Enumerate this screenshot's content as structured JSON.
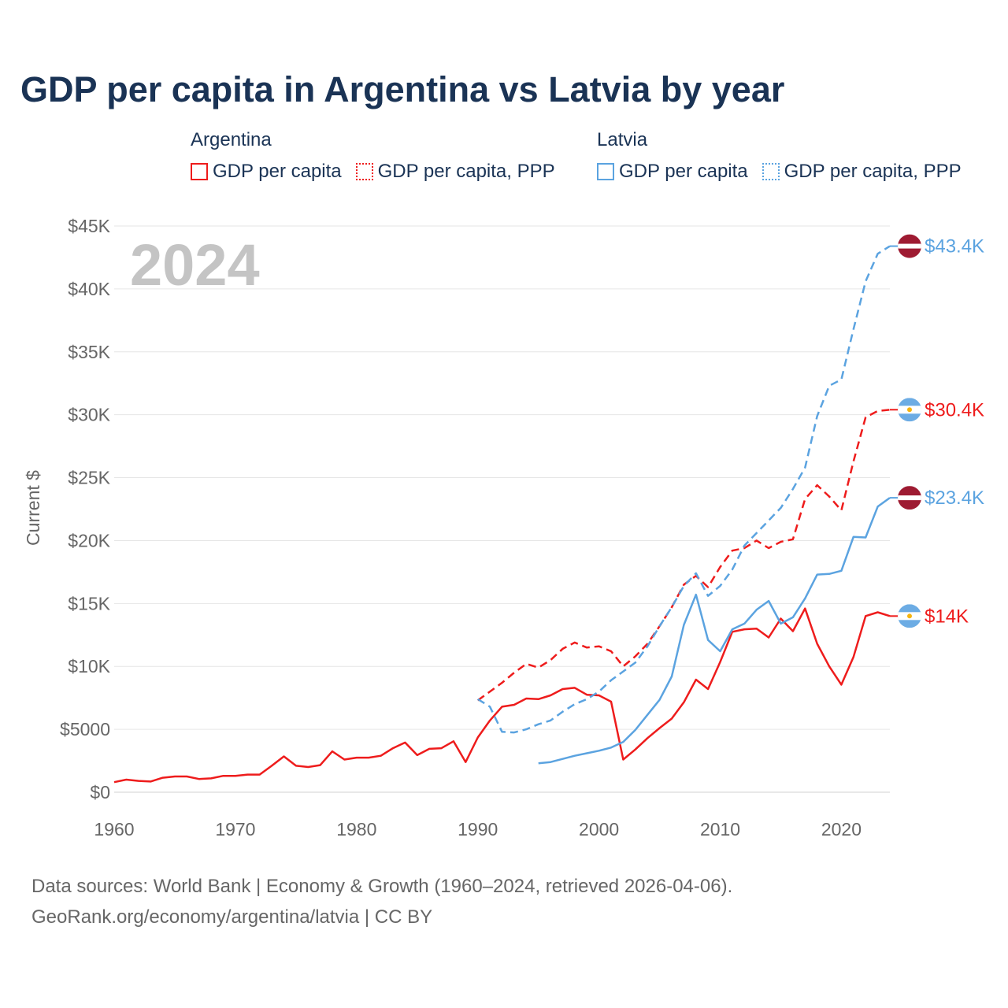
{
  "title": "GDP per capita in Argentina vs Latvia by year",
  "legend": {
    "groups": [
      {
        "name": "Argentina",
        "items": [
          {
            "label": "GDP per capita",
            "style": "solid",
            "color": "#ee1c1c"
          },
          {
            "label": "GDP per capita, PPP",
            "style": "dotted",
            "color": "#ee1c1c"
          }
        ]
      },
      {
        "name": "Latvia",
        "items": [
          {
            "label": "GDP per capita",
            "style": "solid",
            "color": "#5ba3e0"
          },
          {
            "label": "GDP per capita, PPP",
            "style": "dotted",
            "color": "#5ba3e0"
          }
        ]
      }
    ]
  },
  "footer": {
    "line1": "Data sources: World Bank | Economy & Growth (1960–2024, retrieved 2026-04-06).",
    "line2": "GeoRank.org/economy/argentina/latvia | CC BY"
  },
  "chart_data": {
    "type": "line",
    "title": "GDP per capita in Argentina vs Latvia by year",
    "year_label": "2024",
    "ylabel": "Current $",
    "xlabel": "",
    "xlim": [
      1960,
      2024
    ],
    "ylim": [
      0,
      45000
    ],
    "x_ticks": [
      1960,
      1970,
      1980,
      1990,
      2000,
      2010,
      2020
    ],
    "x_tick_labels": [
      "1960",
      "1970",
      "1980",
      "1990",
      "2000",
      "2010",
      "2020"
    ],
    "y_ticks": [
      0,
      5000,
      10000,
      15000,
      20000,
      25000,
      30000,
      35000,
      40000,
      45000
    ],
    "y_tick_labels": [
      "$0",
      "$5000",
      "$10K",
      "$15K",
      "$20K",
      "$25K",
      "$30K",
      "$35K",
      "$40K",
      "$45K"
    ],
    "grid": true,
    "series": [
      {
        "name": "Argentina GDP per capita",
        "country": "Argentina",
        "flag": "argentina",
        "dash": "solid",
        "color": "#ee1c1c",
        "end_label": "$14K",
        "x": [
          1960,
          1961,
          1962,
          1963,
          1964,
          1965,
          1966,
          1967,
          1968,
          1969,
          1970,
          1971,
          1972,
          1973,
          1974,
          1975,
          1976,
          1977,
          1978,
          1979,
          1980,
          1981,
          1982,
          1983,
          1984,
          1985,
          1986,
          1987,
          1988,
          1989,
          1990,
          1991,
          1992,
          1993,
          1994,
          1995,
          1996,
          1997,
          1998,
          1999,
          2000,
          2001,
          2002,
          2003,
          2004,
          2005,
          2006,
          2007,
          2008,
          2009,
          2010,
          2011,
          2012,
          2013,
          2014,
          2015,
          2016,
          2017,
          2018,
          2019,
          2020,
          2021,
          2022,
          2023,
          2024
        ],
        "values": [
          800,
          1000,
          900,
          850,
          1150,
          1250,
          1250,
          1050,
          1100,
          1300,
          1300,
          1400,
          1400,
          2100,
          2850,
          2100,
          2000,
          2150,
          3250,
          2600,
          2750,
          2750,
          2900,
          3500,
          3950,
          2950,
          3450,
          3500,
          4050,
          2400,
          4350,
          5700,
          6800,
          6950,
          7450,
          7400,
          7700,
          8200,
          8300,
          7750,
          7700,
          7200,
          2600,
          3400,
          4300,
          5100,
          5850,
          7150,
          8950,
          8200,
          10350,
          12750,
          12950,
          13000,
          12300,
          13800,
          12800,
          14600,
          11800,
          10000,
          8550,
          10750,
          14000,
          14300,
          14000
        ]
      },
      {
        "name": "Argentina GDP per capita, PPP",
        "country": "Argentina",
        "flag": "argentina",
        "dash": "dashed",
        "color": "#ee1c1c",
        "end_label": "$30.4K",
        "x": [
          1990,
          1991,
          1992,
          1993,
          1994,
          1995,
          1996,
          1997,
          1998,
          1999,
          2000,
          2001,
          2002,
          2003,
          2004,
          2005,
          2006,
          2007,
          2008,
          2009,
          2010,
          2011,
          2012,
          2013,
          2014,
          2015,
          2016,
          2017,
          2018,
          2019,
          2020,
          2021,
          2022,
          2023,
          2024
        ],
        "values": [
          7300,
          8000,
          8700,
          9500,
          10200,
          9900,
          10500,
          11400,
          11900,
          11500,
          11600,
          11200,
          10000,
          10800,
          11800,
          13200,
          14700,
          16500,
          17200,
          16300,
          17900,
          19200,
          19400,
          20000,
          19400,
          19900,
          20100,
          23300,
          24400,
          23500,
          22400,
          26300,
          29800,
          30300,
          30400
        ]
      },
      {
        "name": "Latvia GDP per capita",
        "country": "Latvia",
        "flag": "latvia",
        "dash": "solid",
        "color": "#5ba3e0",
        "end_label": "$23.4K",
        "x": [
          1995,
          1996,
          1997,
          1998,
          1999,
          2000,
          2001,
          2002,
          2003,
          2004,
          2005,
          2006,
          2007,
          2008,
          2009,
          2010,
          2011,
          2012,
          2013,
          2014,
          2015,
          2016,
          2017,
          2018,
          2019,
          2020,
          2021,
          2022,
          2023,
          2024
        ],
        "values": [
          2300,
          2400,
          2650,
          2900,
          3100,
          3300,
          3550,
          4000,
          4950,
          6150,
          7350,
          9200,
          13300,
          15700,
          12100,
          11200,
          12950,
          13400,
          14500,
          15200,
          13400,
          13900,
          15400,
          17300,
          17350,
          17600,
          20300,
          20250,
          22700,
          23400
        ]
      },
      {
        "name": "Latvia GDP per capita, PPP",
        "country": "Latvia",
        "flag": "latvia",
        "dash": "dashed",
        "color": "#5ba3e0",
        "end_label": "$43.4K",
        "x": [
          1990,
          1991,
          1992,
          1993,
          1994,
          1995,
          1996,
          1997,
          1998,
          1999,
          2000,
          2001,
          2002,
          2003,
          2004,
          2005,
          2006,
          2007,
          2008,
          2009,
          2010,
          2011,
          2012,
          2013,
          2014,
          2015,
          2016,
          2017,
          2018,
          2019,
          2020,
          2021,
          2022,
          2023,
          2024
        ],
        "values": [
          7400,
          6800,
          4800,
          4750,
          5000,
          5400,
          5700,
          6400,
          7000,
          7400,
          8000,
          8900,
          9600,
          10300,
          11600,
          13200,
          14700,
          16400,
          17400,
          15600,
          16400,
          17700,
          19600,
          20600,
          21600,
          22600,
          24100,
          25800,
          29900,
          32300,
          32800,
          36800,
          40600,
          42800,
          43400
        ]
      }
    ]
  }
}
